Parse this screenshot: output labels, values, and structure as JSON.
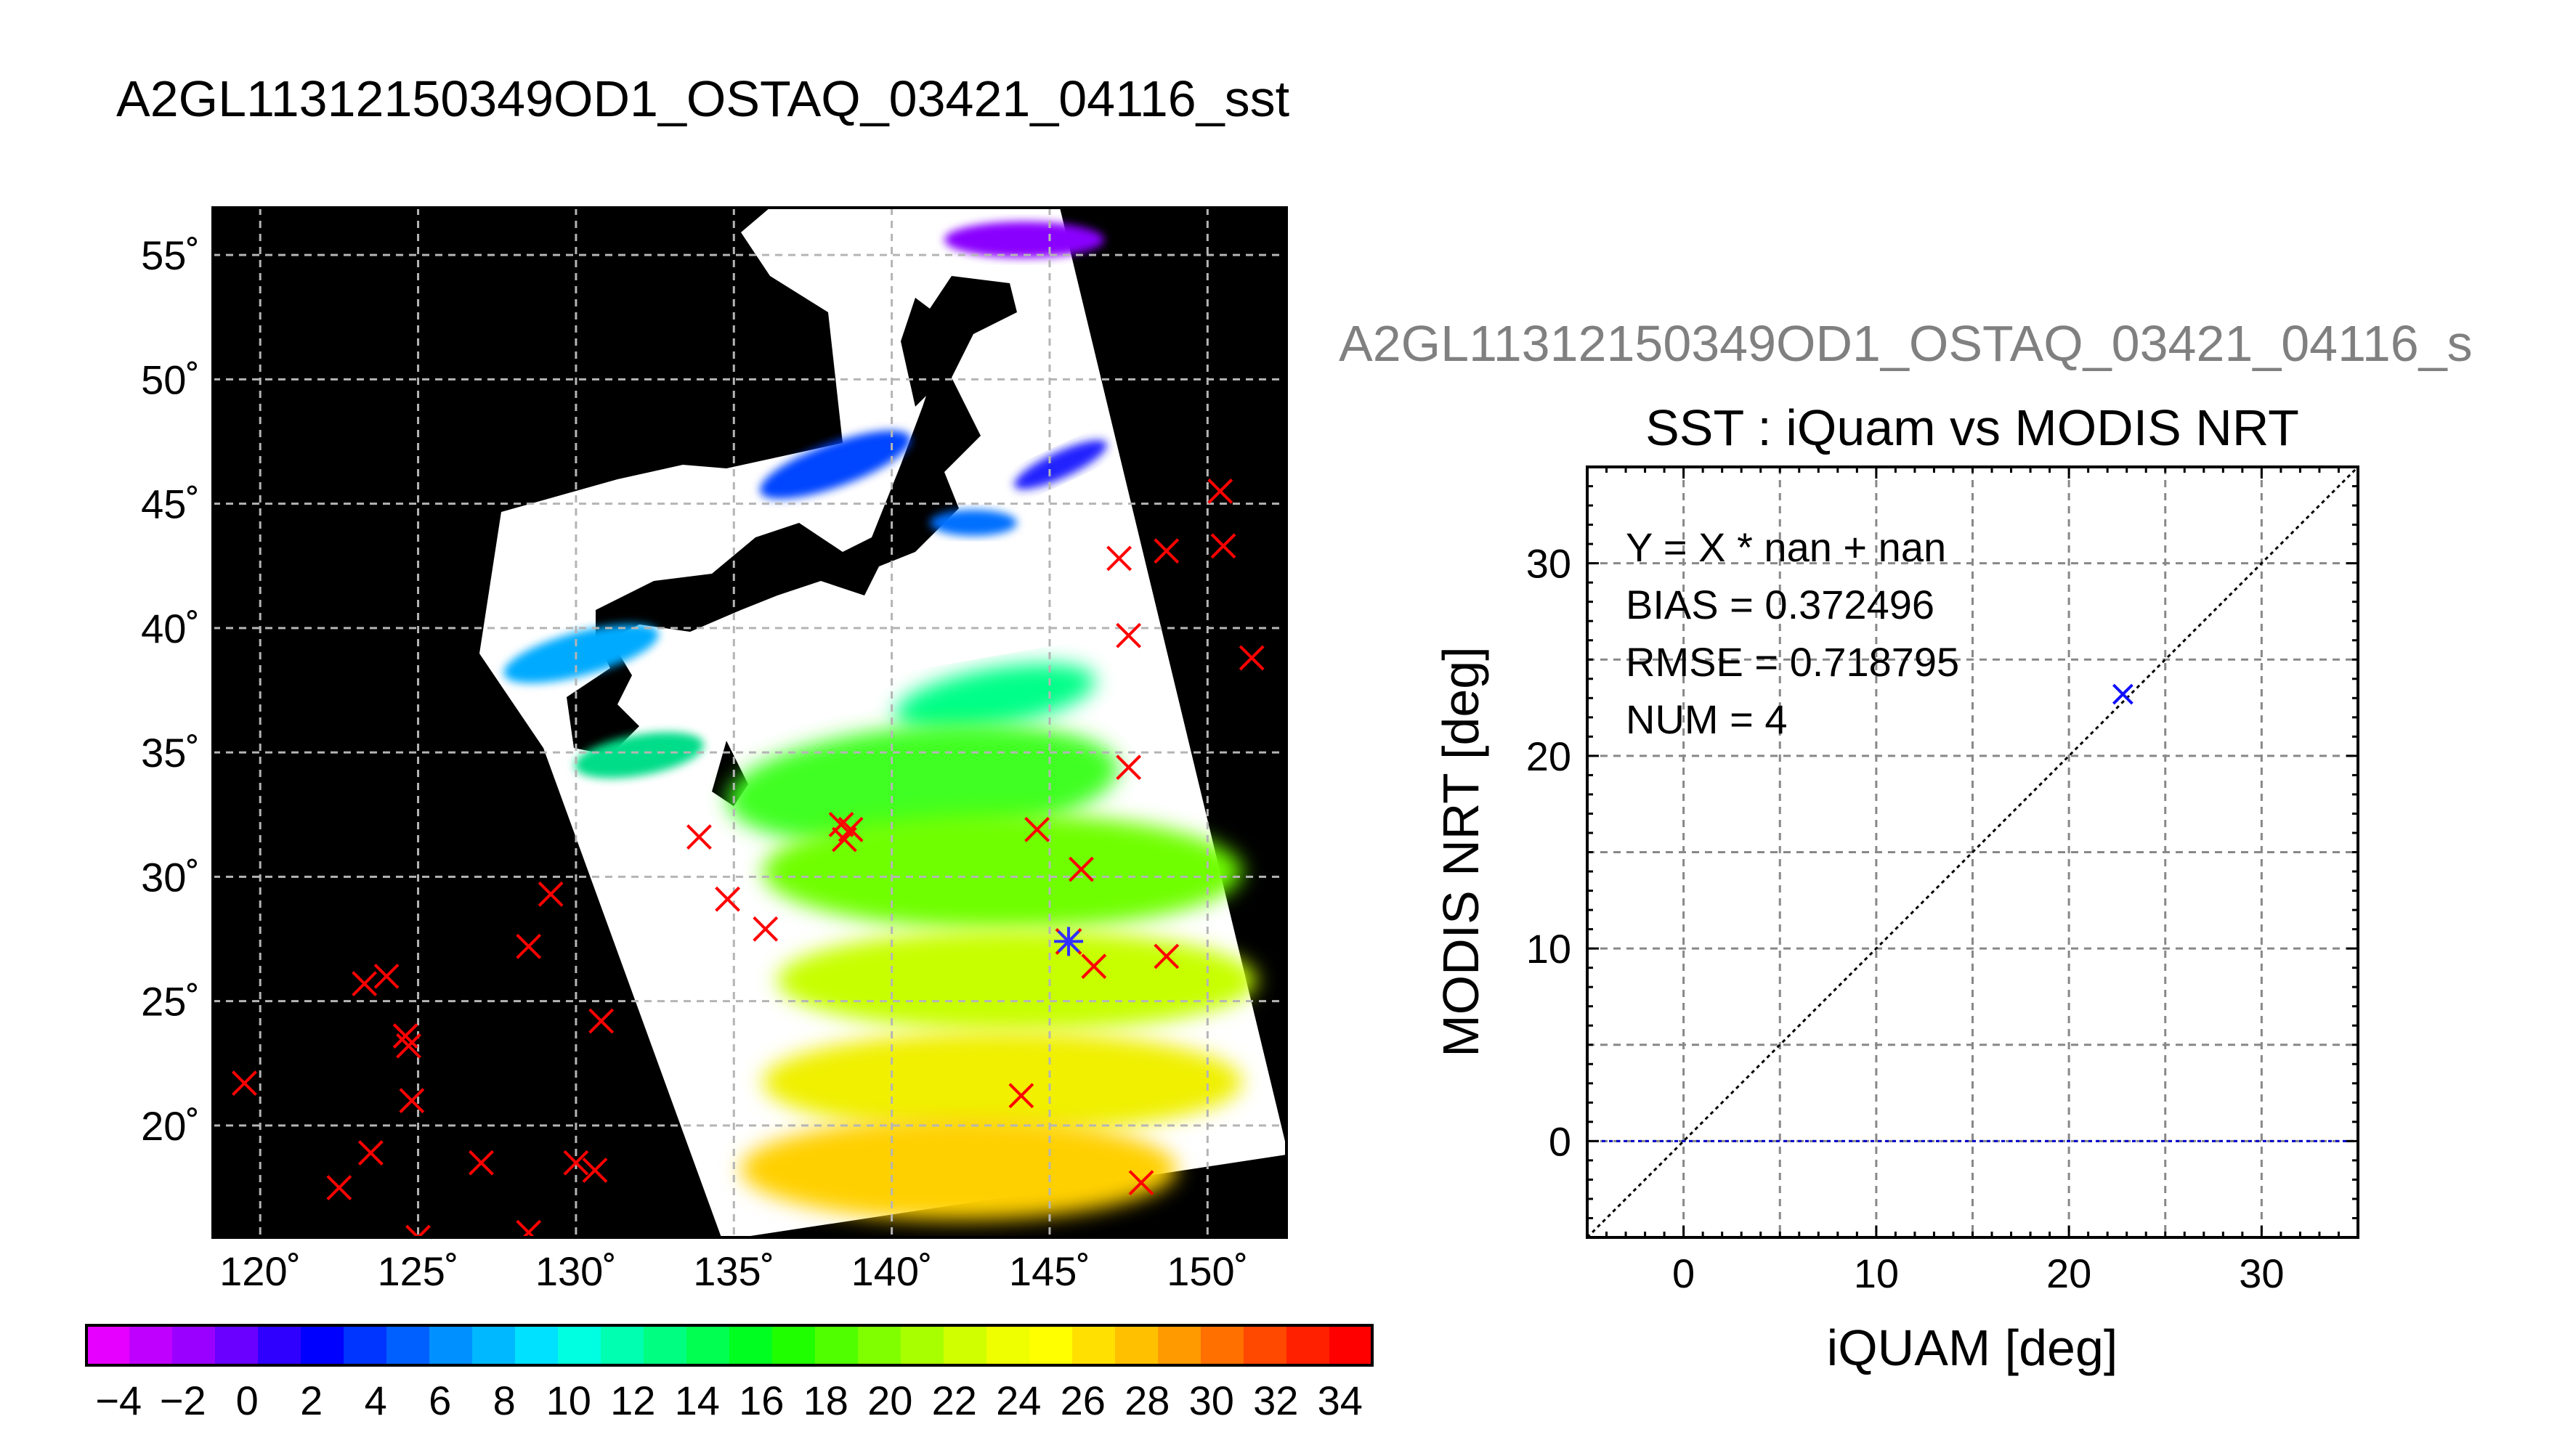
{
  "main_title": "A2GL11312150349OD1_OSTAQ_03421_04116_sst",
  "map": {
    "type": "map",
    "lon_ticks": [
      "120˚",
      "125˚",
      "130˚",
      "135˚",
      "140˚",
      "145˚",
      "150˚"
    ],
    "lat_ticks": [
      "55˚",
      "50˚",
      "45˚",
      "40˚",
      "35˚",
      "30˚",
      "25˚",
      "20˚"
    ],
    "lon_tick_values": [
      120,
      125,
      130,
      135,
      140,
      145,
      150
    ],
    "lat_tick_values": [
      55,
      50,
      45,
      40,
      35,
      30,
      25,
      20
    ],
    "lon_range": [
      118.5,
      152.5
    ],
    "lat_range": [
      15.5,
      56.9
    ],
    "in_situ_markers": [
      [
        119.5,
        21.7
      ],
      [
        122.5,
        17.5
      ],
      [
        123.3,
        25.7
      ],
      [
        123.5,
        18.9
      ],
      [
        124.0,
        26.0
      ],
      [
        124.6,
        23.6
      ],
      [
        124.7,
        23.2
      ],
      [
        124.8,
        21.0
      ],
      [
        125.0,
        15.5
      ],
      [
        127.0,
        18.5
      ],
      [
        128.5,
        27.2
      ],
      [
        129.2,
        29.3
      ],
      [
        128.5,
        15.7
      ],
      [
        130.0,
        18.5
      ],
      [
        130.8,
        24.2
      ],
      [
        130.6,
        18.2
      ],
      [
        133.9,
        31.6
      ],
      [
        134.8,
        29.1
      ],
      [
        136.0,
        27.9
      ],
      [
        138.4,
        32.1
      ],
      [
        138.5,
        31.5
      ],
      [
        138.7,
        31.9
      ],
      [
        144.6,
        31.9
      ],
      [
        146.0,
        30.3
      ],
      [
        146.4,
        26.4
      ],
      [
        144.1,
        21.2
      ],
      [
        147.2,
        42.8
      ],
      [
        147.5,
        39.7
      ],
      [
        147.5,
        34.4
      ],
      [
        148.7,
        43.1
      ],
      [
        148.7,
        26.8
      ],
      [
        150.4,
        45.5
      ],
      [
        150.5,
        43.3
      ],
      [
        151.4,
        38.8
      ],
      [
        147.9,
        17.7
      ]
    ],
    "matched_marker": [
      145.6,
      27.4
    ]
  },
  "colorbar": {
    "ticks": [
      "−4",
      "−2",
      "0",
      "2",
      "4",
      "6",
      "8",
      "10",
      "12",
      "14",
      "16",
      "18",
      "20",
      "22",
      "24",
      "26",
      "28",
      "30",
      "32",
      "34"
    ],
    "min": -5,
    "max": 35,
    "colors": [
      "#e600ff",
      "#c000ff",
      "#9a00ff",
      "#6a00ff",
      "#3000ff",
      "#0000ff",
      "#0034ff",
      "#0060ff",
      "#0090ff",
      "#00b8ff",
      "#00e0ff",
      "#00ffe0",
      "#00ffb0",
      "#00ff80",
      "#00ff50",
      "#00ff20",
      "#20ff00",
      "#50ff00",
      "#80ff00",
      "#a8ff00",
      "#d0ff00",
      "#f0ff00",
      "#ffff00",
      "#ffe000",
      "#ffc000",
      "#ff9a00",
      "#ff7000",
      "#ff4800",
      "#ff2000",
      "#ff0000"
    ]
  },
  "scatter_super_title": "A2GL11312150349OD1_OSTAQ_03421_04116_s",
  "chart_data": {
    "type": "scatter",
    "title": "SST : iQuam vs MODIS NRT",
    "xlabel": "iQUAM [deg]",
    "ylabel": "MODIS NRT [deg]",
    "xlim": [
      -5,
      35
    ],
    "ylim": [
      -5,
      35
    ],
    "x_ticks": [
      0,
      10,
      20,
      30
    ],
    "y_ticks": [
      0,
      10,
      20,
      30
    ],
    "grid": true,
    "points": [
      {
        "x": 22.8,
        "y": 23.2
      }
    ],
    "reference_lines": [
      {
        "name": "1:1",
        "style": "dotted",
        "color": "#000000"
      },
      {
        "name": "Y = 0",
        "style": "dotted",
        "color": "#0000cc"
      }
    ],
    "annotations": [
      "Y = X * nan + nan",
      "BIAS = 0.372496",
      "RMSE = 0.718795",
      "NUM = 4"
    ]
  }
}
